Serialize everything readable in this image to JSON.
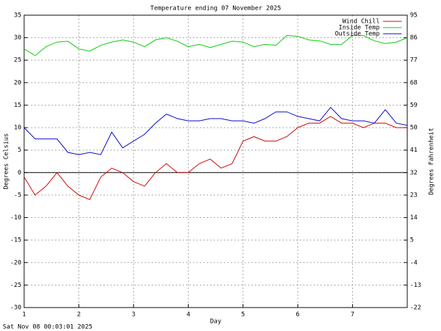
{
  "chart_data": {
    "type": "line",
    "title": "Temperature ending 07 November 2025",
    "x_label": "Day",
    "y_label": "Degrees Celsius",
    "y2_label": "Degrees Fahrenheit",
    "timestamp": "Sat Nov 08 00:03:01 2025",
    "x": [
      1,
      1.2,
      1.4,
      1.6,
      1.8,
      2,
      2.2,
      2.4,
      2.6,
      2.8,
      3,
      3.2,
      3.4,
      3.6,
      3.8,
      4,
      4.2,
      4.4,
      4.6,
      4.8,
      5,
      5.2,
      5.4,
      5.6,
      5.8,
      6,
      6.2,
      6.4,
      6.6,
      6.8,
      7,
      7.2,
      7.4,
      7.6,
      7.8,
      8
    ],
    "series": [
      {
        "name": "Wind Chill",
        "color": "#cc0000",
        "values": [
          -1,
          -5,
          -3,
          0,
          -3,
          -5,
          -6,
          -1,
          1,
          0,
          -2,
          -3,
          0,
          2,
          0,
          0,
          2,
          3,
          1,
          2,
          7,
          8,
          7,
          7,
          8,
          10,
          11,
          11,
          12.5,
          11,
          11,
          10,
          11,
          11,
          10,
          10
        ]
      },
      {
        "name": "Inside Temp",
        "color": "#00cc00",
        "values": [
          27.5,
          26,
          28,
          29,
          29.2,
          27.5,
          27,
          28.3,
          29,
          29.5,
          29,
          28,
          29.5,
          30,
          29.2,
          28,
          28.5,
          27.8,
          28.5,
          29.2,
          29,
          28,
          28.5,
          28.3,
          30.5,
          30.3,
          29.5,
          29.3,
          28.5,
          28.5,
          30.5,
          30.5,
          29.3,
          28.7,
          29,
          30
        ]
      },
      {
        "name": "Outside Temp",
        "color": "#0000cc",
        "values": [
          10,
          7.5,
          7.5,
          7.5,
          4.5,
          4,
          4.5,
          4,
          9,
          5.5,
          7,
          8.5,
          11,
          13,
          12,
          11.5,
          11.5,
          12,
          12,
          11.5,
          11.5,
          11,
          12,
          13.5,
          13.5,
          12.5,
          12,
          11.5,
          14.5,
          12,
          11.5,
          11.5,
          11,
          14,
          11,
          10.5
        ]
      }
    ],
    "xlim": [
      1,
      8
    ],
    "xticks": [
      1,
      2,
      3,
      4,
      5,
      6,
      7
    ],
    "ylim": [
      -30,
      35
    ],
    "yticks": [
      -30,
      -25,
      -20,
      -15,
      -10,
      -5,
      0,
      5,
      10,
      15,
      20,
      25,
      30,
      35
    ],
    "y2lim": [
      -22,
      95
    ],
    "y2ticks": [
      -22,
      -13,
      -4,
      5,
      14,
      23,
      32,
      41,
      50,
      59,
      68,
      77,
      86,
      95
    ],
    "grid": true,
    "legend": "upper right"
  }
}
